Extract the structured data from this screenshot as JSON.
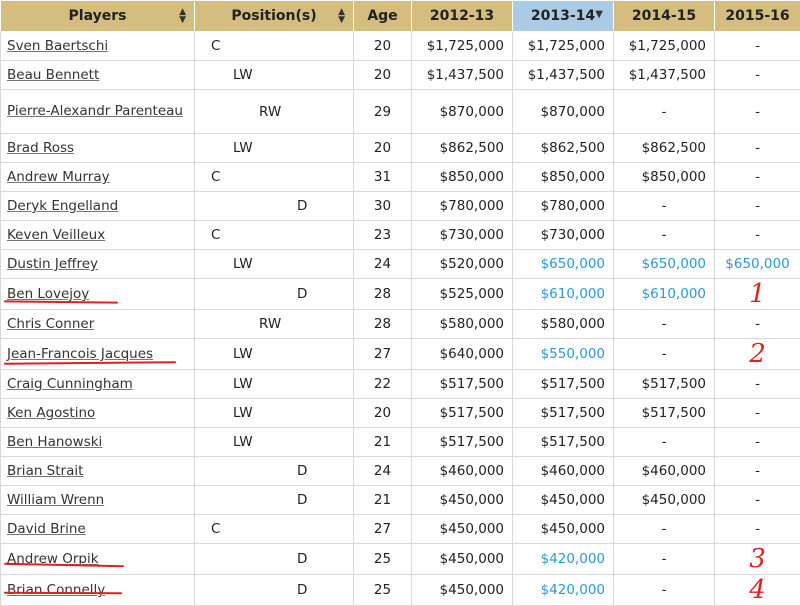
{
  "table": {
    "headers": {
      "players": "Players",
      "positions": "Position(s)",
      "age": "Age",
      "y2012": "2012-13",
      "y2013": "2013-14",
      "y2014": "2014-15",
      "y2015": "2015-16"
    },
    "sort_icons": {
      "both": "▲▼",
      "desc": "▼"
    },
    "rows": [
      {
        "player": "Sven Baertschi",
        "pos": "C",
        "age": "20",
        "y2012": "$1,725,000",
        "y2013": "$1,725,000",
        "y2014": "$1,725,000",
        "y2015": "-"
      },
      {
        "player": "Beau Bennett",
        "pos": "LW",
        "age": "20",
        "y2012": "$1,437,500",
        "y2013": "$1,437,500",
        "y2014": "$1,437,500",
        "y2015": "-"
      },
      {
        "player": "Pierre-Alexandr Parenteau",
        "pos": "RW",
        "age": "29",
        "y2012": "$870,000",
        "y2013": "$870,000",
        "y2014": "-",
        "y2015": "-"
      },
      {
        "player": "Brad Ross",
        "pos": "LW",
        "age": "20",
        "y2012": "$862,500",
        "y2013": "$862,500",
        "y2014": "$862,500",
        "y2015": "-"
      },
      {
        "player": "Andrew Murray",
        "pos": "C",
        "age": "31",
        "y2012": "$850,000",
        "y2013": "$850,000",
        "y2014": "$850,000",
        "y2015": "-"
      },
      {
        "player": "Deryk Engelland",
        "pos": "D",
        "age": "30",
        "y2012": "$780,000",
        "y2013": "$780,000",
        "y2014": "-",
        "y2015": "-"
      },
      {
        "player": "Keven Veilleux",
        "pos": "C",
        "age": "23",
        "y2012": "$730,000",
        "y2013": "$730,000",
        "y2014": "-",
        "y2015": "-"
      },
      {
        "player": "Dustin Jeffrey",
        "pos": "LW",
        "age": "24",
        "y2012": "$520,000",
        "y2013": "$650,000",
        "y2014": "$650,000",
        "y2015": "$650,000"
      },
      {
        "player": "Ben Lovejoy",
        "pos": "D",
        "age": "28",
        "y2012": "$525,000",
        "y2013": "$610,000",
        "y2014": "$610,000",
        "y2015": "1"
      },
      {
        "player": "Chris Conner",
        "pos": "RW",
        "age": "28",
        "y2012": "$580,000",
        "y2013": "$580,000",
        "y2014": "-",
        "y2015": "-"
      },
      {
        "player": "Jean-Francois Jacques",
        "pos": "LW",
        "age": "27",
        "y2012": "$640,000",
        "y2013": "$550,000",
        "y2014": "-",
        "y2015": "2"
      },
      {
        "player": "Craig Cunningham",
        "pos": "LW",
        "age": "22",
        "y2012": "$517,500",
        "y2013": "$517,500",
        "y2014": "$517,500",
        "y2015": "-"
      },
      {
        "player": "Ken Agostino",
        "pos": "LW",
        "age": "20",
        "y2012": "$517,500",
        "y2013": "$517,500",
        "y2014": "$517,500",
        "y2015": "-"
      },
      {
        "player": "Ben Hanowski",
        "pos": "LW",
        "age": "21",
        "y2012": "$517,500",
        "y2013": "$517,500",
        "y2014": "-",
        "y2015": "-"
      },
      {
        "player": "Brian Strait",
        "pos": "D",
        "age": "24",
        "y2012": "$460,000",
        "y2013": "$460,000",
        "y2014": "$460,000",
        "y2015": "-"
      },
      {
        "player": "William Wrenn",
        "pos": "D",
        "age": "21",
        "y2012": "$450,000",
        "y2013": "$450,000",
        "y2014": "$450,000",
        "y2015": "-"
      },
      {
        "player": "David Brine",
        "pos": "C",
        "age": "27",
        "y2012": "$450,000",
        "y2013": "$450,000",
        "y2014": "-",
        "y2015": "-"
      },
      {
        "player": "Andrew Orpik",
        "pos": "D",
        "age": "25",
        "y2012": "$450,000",
        "y2013": "$420,000",
        "y2014": "-",
        "y2015": "3"
      },
      {
        "player": "Brian Connelly",
        "pos": "D",
        "age": "25",
        "y2012": "$450,000",
        "y2013": "$420,000",
        "y2014": "-",
        "y2015": "4"
      }
    ]
  },
  "colors": {
    "header_bg": "#d4bd7e",
    "sorted_header_bg": "#a9cbe6",
    "highlight_text": "#2a9ad6",
    "annotation_red": "#e0231f"
  }
}
